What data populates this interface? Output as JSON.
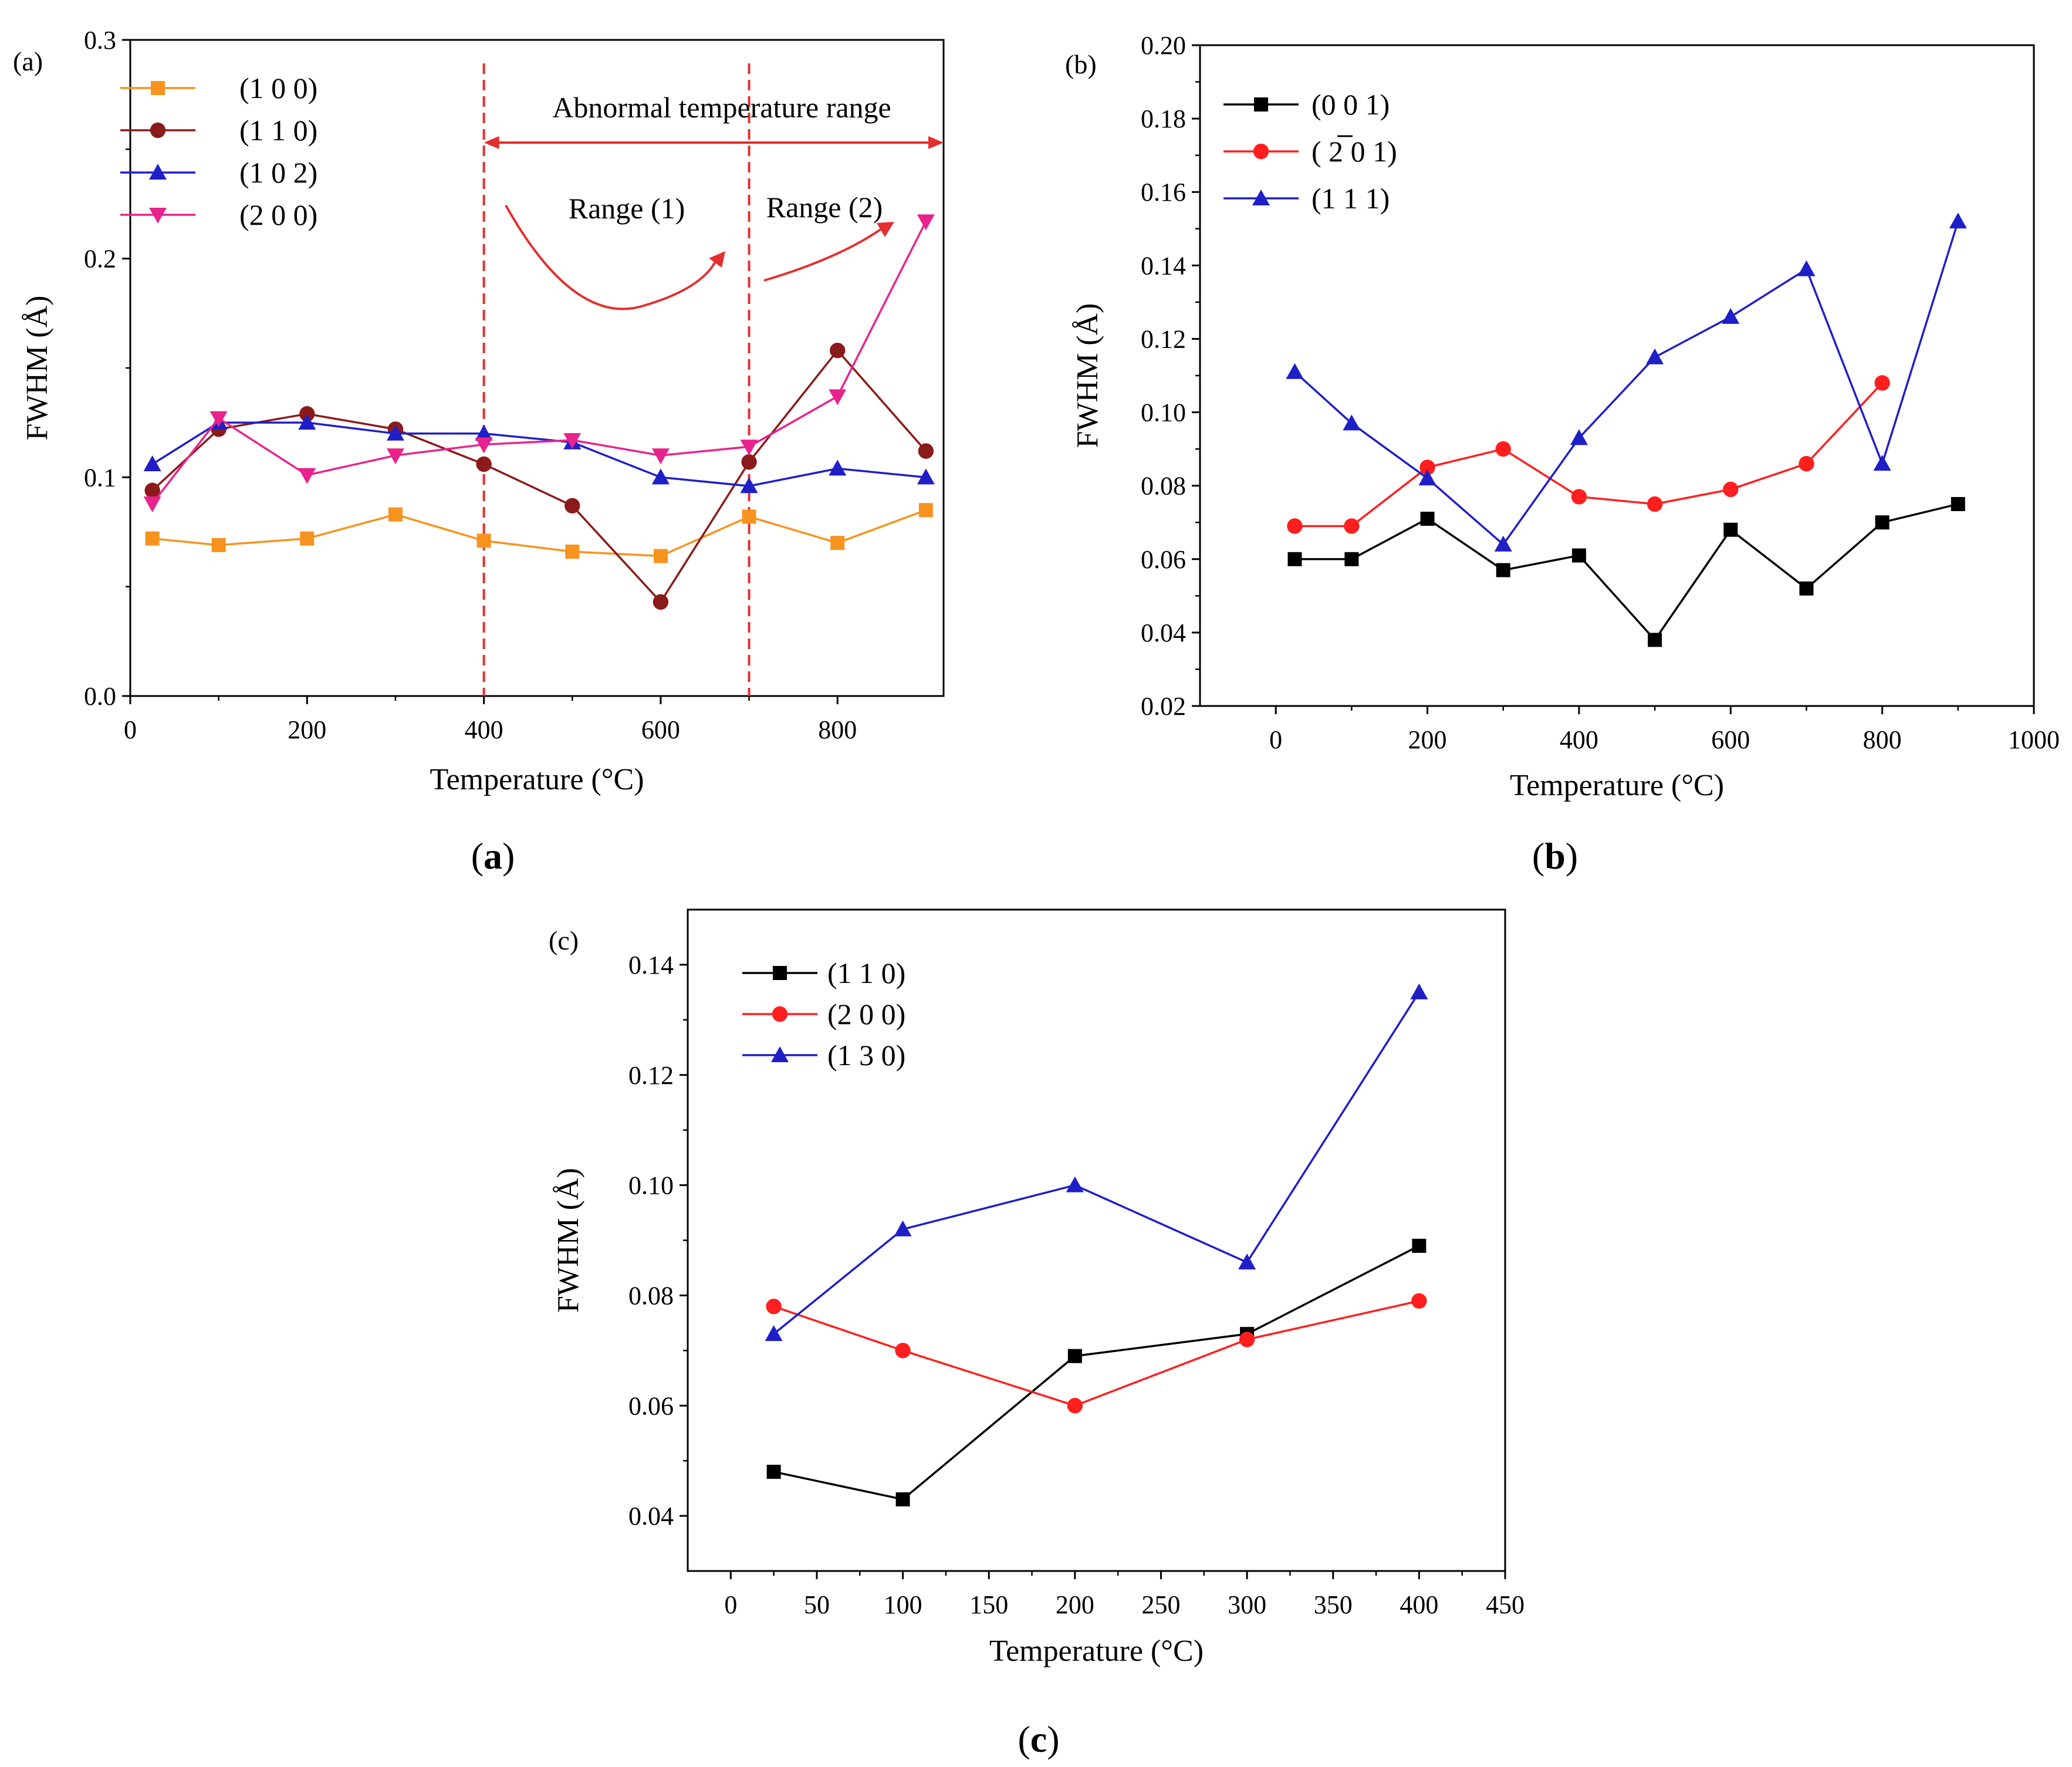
{
  "chart_data": [
    {
      "id": "a",
      "type": "line",
      "panel_label": "(a)",
      "caption_letter": "a",
      "xlabel": "Temperature (°C)",
      "ylabel": "FWHM (Å)",
      "xlim": [
        0,
        920
      ],
      "ylim": [
        0,
        0.3
      ],
      "xticks": [
        0,
        200,
        400,
        600,
        800
      ],
      "yticks": [
        0,
        0.1,
        0.2,
        0.3
      ],
      "ytick_labels": [
        "0.0",
        "0.1",
        "0.2",
        "0.3"
      ],
      "legend_position": "top-left",
      "series": [
        {
          "name": "(1 0 0)",
          "color": "#f7931e",
          "marker": "square",
          "x": [
            25,
            100,
            200,
            300,
            400,
            500,
            600,
            700,
            800,
            900
          ],
          "y": [
            0.072,
            0.069,
            0.072,
            0.083,
            0.071,
            0.066,
            0.064,
            0.082,
            0.07,
            0.085
          ]
        },
        {
          "name": "(1 1 0)",
          "color": "#8b1a1a",
          "marker": "circle",
          "x": [
            25,
            100,
            200,
            300,
            400,
            500,
            600,
            700,
            800,
            900
          ],
          "y": [
            0.094,
            0.122,
            0.129,
            0.122,
            0.106,
            0.087,
            0.043,
            0.107,
            0.158,
            0.112
          ]
        },
        {
          "name": "(1 0 2)",
          "color": "#1f1fc8",
          "marker": "triangle-up",
          "x": [
            25,
            100,
            200,
            300,
            400,
            500,
            600,
            700,
            800,
            900
          ],
          "y": [
            0.106,
            0.125,
            0.125,
            0.12,
            0.12,
            0.116,
            0.1,
            0.096,
            0.104,
            0.1
          ]
        },
        {
          "name": "(2 0 0)",
          "color": "#e8238c",
          "marker": "triangle-down",
          "x": [
            25,
            100,
            200,
            300,
            400,
            500,
            600,
            700,
            800,
            900
          ],
          "y": [
            0.088,
            0.127,
            0.101,
            0.11,
            0.115,
            0.117,
            0.11,
            0.114,
            0.137,
            0.217
          ]
        }
      ],
      "vlines": [
        400,
        700
      ],
      "annotations": {
        "abnormal_range": "Abnormal temperature range",
        "range1": "Range (1)",
        "range2": "Range (2)"
      },
      "annotation_color": "#e52e2e"
    },
    {
      "id": "b",
      "type": "line",
      "panel_label": "(b)",
      "caption_letter": "b",
      "xlabel": "Temperature (°C)",
      "ylabel": "FWHM (Å)",
      "xlim": [
        -100,
        1000
      ],
      "ylim": [
        0.02,
        0.2
      ],
      "xticks": [
        0,
        200,
        400,
        600,
        800,
        1000
      ],
      "yticks": [
        0.02,
        0.04,
        0.06,
        0.08,
        0.1,
        0.12,
        0.14,
        0.16,
        0.18,
        0.2
      ],
      "ytick_labels": [
        "0.02",
        "0.04",
        "0.06",
        "0.08",
        "0.10",
        "0.12",
        "0.14",
        "0.16",
        "0.18",
        "0.20"
      ],
      "legend_position": "top-left",
      "series": [
        {
          "name": "(0 0 1)",
          "color": "#000000",
          "marker": "square",
          "x": [
            25,
            100,
            200,
            300,
            400,
            500,
            600,
            700,
            800,
            900
          ],
          "y": [
            0.06,
            0.06,
            0.071,
            0.057,
            0.061,
            0.038,
            0.068,
            0.052,
            0.07,
            0.075
          ]
        },
        {
          "name": "( 2 0 1)",
          "color": "#ff1f1f",
          "marker": "circle",
          "overbar": "2",
          "x": [
            25,
            100,
            200,
            300,
            400,
            500,
            600,
            700,
            800
          ],
          "y": [
            0.069,
            0.069,
            0.085,
            0.09,
            0.077,
            0.075,
            0.079,
            0.086,
            0.108
          ]
        },
        {
          "name": "(1 1 1)",
          "color": "#1f1fc8",
          "marker": "triangle-up",
          "x": [
            25,
            100,
            200,
            300,
            400,
            500,
            600,
            700,
            800,
            900
          ],
          "y": [
            0.111,
            0.097,
            0.082,
            0.064,
            0.093,
            0.115,
            0.126,
            0.139,
            0.086,
            0.152
          ]
        }
      ]
    },
    {
      "id": "c",
      "type": "line",
      "panel_label": "(c)",
      "caption_letter": "c",
      "xlabel": "Temperature (°C)",
      "ylabel": "FWHM (Å)",
      "xlim": [
        -25,
        450
      ],
      "ylim": [
        0.03,
        0.15
      ],
      "xticks": [
        0,
        50,
        100,
        150,
        200,
        250,
        300,
        350,
        400,
        450
      ],
      "yticks": [
        0.04,
        0.06,
        0.08,
        0.1,
        0.12,
        0.14
      ],
      "ytick_labels": [
        "0.04",
        "0.06",
        "0.08",
        "0.10",
        "0.12",
        "0.14"
      ],
      "legend_position": "top-left",
      "series": [
        {
          "name": "(1 1 0)",
          "color": "#000000",
          "marker": "square",
          "x": [
            25,
            100,
            200,
            300,
            400
          ],
          "y": [
            0.048,
            0.043,
            0.069,
            0.073,
            0.089
          ]
        },
        {
          "name": "(2 0 0)",
          "color": "#ff1f1f",
          "marker": "circle",
          "x": [
            25,
            100,
            200,
            300,
            400
          ],
          "y": [
            0.078,
            0.07,
            0.06,
            0.072,
            0.079
          ]
        },
        {
          "name": "(1 3 0)",
          "color": "#1f1fc8",
          "marker": "triangle-up",
          "x": [
            25,
            100,
            200,
            300,
            400
          ],
          "y": [
            0.073,
            0.092,
            0.1,
            0.086,
            0.135
          ]
        }
      ]
    }
  ]
}
